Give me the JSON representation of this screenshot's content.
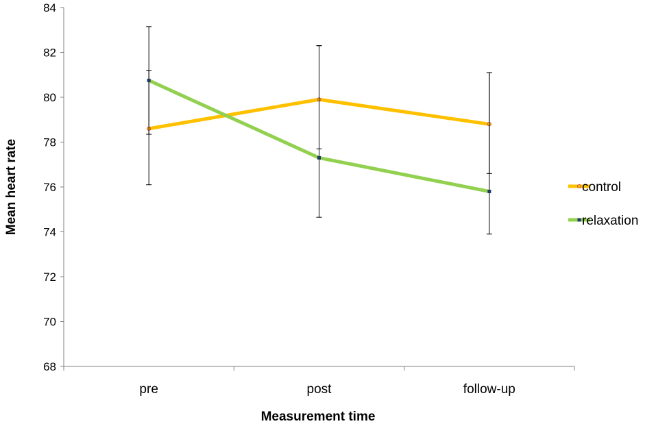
{
  "chart_data": {
    "type": "line",
    "categories": [
      "pre",
      "post",
      "follow-up"
    ],
    "xlabel": "Measurement time",
    "ylabel": "Mean heart rate",
    "ylim": [
      68,
      84
    ],
    "ytick_step": 2,
    "grid": false,
    "legend_position": "right",
    "series": [
      {
        "name": "control",
        "color": "#FFC000",
        "marker": "circle",
        "marker_color": "#C0504D",
        "values": [
          78.6,
          79.9,
          78.8
        ],
        "error_plus": [
          2.6,
          2.4,
          2.3
        ],
        "error_minus": [
          2.5,
          2.2,
          2.2
        ]
      },
      {
        "name": "relaxation",
        "color": "#92D050",
        "marker": "square",
        "marker_color": "#1F3864",
        "values": [
          80.75,
          77.3,
          75.8
        ],
        "error_plus": [
          2.4,
          5.0,
          5.3
        ],
        "error_minus": [
          2.4,
          2.65,
          1.9
        ]
      }
    ]
  }
}
